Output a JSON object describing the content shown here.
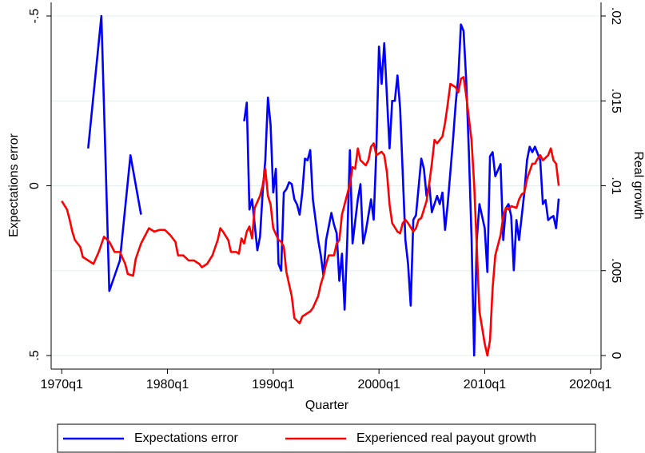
{
  "chart_data": {
    "type": "line",
    "x_label": "Quarter",
    "y_label": "Expectations error",
    "y2_label": "Real growth",
    "xlim": [
      1969,
      2021
    ],
    "xticks": [
      {
        "value": 1970,
        "label": "1970q1"
      },
      {
        "value": 1980,
        "label": "1980q1"
      },
      {
        "value": 1990,
        "label": "1990q1"
      },
      {
        "value": 2000,
        "label": "2000q1"
      },
      {
        "value": 2010,
        "label": "2010q1"
      },
      {
        "value": 2020,
        "label": "2020q1"
      }
    ],
    "ylim": [
      0.54,
      -0.54
    ],
    "yticks": [
      {
        "value": 0.5,
        "label": ".5"
      },
      0,
      {
        "value": -0.5,
        "label": "-.5"
      }
    ],
    "y2lim": [
      -0.0008,
      0.0208
    ],
    "y2ticks": [
      0,
      {
        "value": 0.005,
        "label": ".005"
      },
      {
        "value": 0.01,
        "label": ".01"
      },
      {
        "value": 0.015,
        "label": ".015"
      },
      {
        "value": 0.02,
        "label": ".02"
      }
    ],
    "grid": true,
    "legend": "bottom",
    "series": [
      {
        "name": "Expectations error",
        "color": "#0000ff",
        "axis": "y",
        "x": [
          1972.5,
          1973.75,
          1974.5,
          1975.5,
          1976.5,
          1977.5,
          1982,
          1987.25,
          1987.5,
          1987.75,
          1988,
          1988.5,
          1988.75,
          1989,
          1989.25,
          1989.5,
          1989.75,
          1990,
          1990.25,
          1990.5,
          1990.75,
          1991,
          1991.25,
          1991.5,
          1991.75,
          1992,
          1992.25,
          1992.5,
          1992.75,
          1993,
          1993.25,
          1993.5,
          1993.75,
          1994.25,
          1994.5,
          1994.75,
          1995,
          1995.5,
          1995.75,
          1996,
          1996.25,
          1996.5,
          1996.75,
          1997,
          1997.25,
          1997.5,
          1998,
          1998.25,
          1998.5,
          1998.75,
          1999.25,
          1999.5,
          1999.75,
          2000,
          2000.25,
          2000.5,
          2000.75,
          2001,
          2001.25,
          2001.5,
          2001.75,
          2002,
          2002.5,
          2002.75,
          2003,
          2003.25,
          2003.5,
          2004,
          2004.25,
          2004.5,
          2004.75,
          2005,
          2005.5,
          2005.75,
          2006,
          2006.25,
          2006.5,
          2007,
          2007.25,
          2007.5,
          2007.75,
          2008,
          2008.25,
          2008.5,
          2008.75,
          2009,
          2009.25,
          2009.5,
          2010,
          2010.25,
          2010.5,
          2010.75,
          2011,
          2011.5,
          2011.75,
          2012,
          2012.25,
          2012.5,
          2012.75,
          2013,
          2013.25,
          2013.75,
          2014,
          2014.25,
          2014.5,
          2014.75,
          2015.25,
          2015.5,
          2015.75,
          2016,
          2016.25,
          2016.5,
          2016.75,
          2017
        ],
        "values": [
          -0.11,
          -0.5,
          0.31,
          0.22,
          -0.09,
          0.085,
          null,
          -0.19,
          -0.245,
          0.07,
          0.04,
          0.19,
          0.15,
          0.02,
          -0.075,
          -0.26,
          -0.18,
          0.02,
          -0.05,
          0.23,
          0.25,
          0.02,
          0.01,
          -0.01,
          -0.005,
          0.04,
          0.055,
          0.085,
          0.02,
          -0.08,
          -0.075,
          -0.105,
          0.04,
          0.16,
          0.205,
          0.265,
          0.16,
          0.08,
          0.115,
          0.14,
          0.28,
          0.2,
          0.365,
          0.16,
          -0.105,
          0.17,
          0.04,
          -0.005,
          0.17,
          0.135,
          0.04,
          0.1,
          -0.105,
          -0.41,
          -0.3,
          -0.42,
          -0.265,
          -0.11,
          -0.25,
          -0.25,
          -0.325,
          -0.228,
          0.16,
          0.23,
          0.353,
          0.1,
          0.087,
          -0.08,
          -0.05,
          0.03,
          -0.005,
          0.078,
          0.03,
          0.054,
          0.02,
          0.13,
          0.054,
          -0.134,
          -0.24,
          -0.32,
          -0.475,
          -0.456,
          -0.31,
          -0.099,
          0.148,
          0.5,
          0.16,
          0.054,
          0.125,
          0.254,
          -0.087,
          -0.099,
          -0.028,
          -0.064,
          0.16,
          0.066,
          0.054,
          0.089,
          0.249,
          0.101,
          0.16,
          0.019,
          -0.075,
          -0.115,
          -0.099,
          -0.115,
          -0.075,
          0.054,
          0.042,
          0.101,
          0.094,
          0.089,
          0.125,
          0.038
        ]
      },
      {
        "name": "Experienced real payout growth",
        "color": "#ff0000",
        "axis": "y2",
        "x": [
          1970,
          1970.5,
          1970.75,
          1971,
          1971.25,
          1971.75,
          1972,
          1972.75,
          1973,
          1973.5,
          1974,
          1974.5,
          1975,
          1975.5,
          1976,
          1976.25,
          1976.75,
          1977,
          1977.5,
          1978,
          1978.25,
          1978.75,
          1979.25,
          1979.75,
          1980.25,
          1980.75,
          1981,
          1981.5,
          1982,
          1982.5,
          1983,
          1983.25,
          1983.75,
          1984.25,
          1984.75,
          1985,
          1985.25,
          1985.75,
          1986,
          1986.5,
          1986.75,
          1987,
          1987.25,
          1987.5,
          1987.75,
          1988,
          1988.25,
          1988.75,
          1989,
          1989.25,
          1989.5,
          1989.75,
          1990,
          1990.5,
          1990.75,
          1991,
          1991.25,
          1991.75,
          1992,
          1992.5,
          1992.75,
          1993,
          1993.5,
          1993.75,
          1994.25,
          1994.5,
          1994.75,
          1995,
          1995.25,
          1995.75,
          1996,
          1996.25,
          1996.5,
          1996.75,
          1997.25,
          1997.5,
          1997.75,
          1998,
          1998.25,
          1998.75,
          1999,
          1999.25,
          1999.5,
          1999.75,
          2000.25,
          2000.5,
          2000.75,
          2001,
          2001.25,
          2001.75,
          2002,
          2002.25,
          2002.5,
          2002.75,
          2003.25,
          2003.5,
          2003.75,
          2004,
          2004.5,
          2004.75,
          2005,
          2005.25,
          2005.5,
          2006,
          2006.25,
          2006.5,
          2006.75,
          2007.25,
          2007.5,
          2007.75,
          2008,
          2008.25,
          2008.75,
          2009,
          2009.25,
          2009.5,
          2010,
          2010.25,
          2010.5,
          2010.75,
          2011,
          2011.5,
          2011.75,
          2012,
          2012.25,
          2012.5,
          2013,
          2013.25,
          2013.5,
          2013.75,
          2014,
          2014.5,
          2014.75,
          2015,
          2015.25,
          2015.5,
          2016,
          2016.25,
          2016.5,
          2016.75,
          2017
        ],
        "values": [
          0.0091,
          0.0086,
          0.008,
          0.0073,
          0.0068,
          0.0064,
          0.0058,
          0.0055,
          0.0054,
          0.0061,
          0.007,
          0.0067,
          0.0061,
          0.0061,
          0.0054,
          0.0048,
          0.0047,
          0.0057,
          0.0066,
          0.0072,
          0.0075,
          0.0073,
          0.0074,
          0.0074,
          0.0071,
          0.0067,
          0.0059,
          0.0059,
          0.0056,
          0.0056,
          0.0054,
          0.0052,
          0.0054,
          0.0059,
          0.0068,
          0.0075,
          0.0073,
          0.0068,
          0.0061,
          0.0061,
          0.006,
          0.0069,
          0.0066,
          0.0073,
          0.0076,
          0.0069,
          0.0087,
          0.0094,
          0.01,
          0.011,
          0.0094,
          0.0089,
          0.0075,
          0.0068,
          0.0067,
          0.0064,
          0.0049,
          0.0035,
          0.0022,
          0.0019,
          0.0023,
          0.0024,
          0.0026,
          0.0028,
          0.0035,
          0.0042,
          0.0047,
          0.0054,
          0.0059,
          0.0059,
          0.0066,
          0.0068,
          0.0083,
          0.0089,
          0.0101,
          0.0111,
          0.011,
          0.0122,
          0.0115,
          0.0112,
          0.0115,
          0.0123,
          0.0125,
          0.0118,
          0.012,
          0.0118,
          0.0108,
          0.0089,
          0.0078,
          0.0073,
          0.0072,
          0.0078,
          0.008,
          0.0078,
          0.0073,
          0.0075,
          0.008,
          0.0081,
          0.0091,
          0.0101,
          0.0113,
          0.0127,
          0.0125,
          0.0129,
          0.0137,
          0.0148,
          0.016,
          0.0158,
          0.0155,
          0.0163,
          0.0164,
          0.0153,
          0.0127,
          0.0101,
          0.0064,
          0.0026,
          0.0007,
          0,
          0.0009,
          0.004,
          0.0059,
          0.0071,
          0.0082,
          0.0087,
          0.0086,
          0.0088,
          0.0087,
          0.0092,
          0.0095,
          0.0096,
          0.0104,
          0.0113,
          0.0113,
          0.0116,
          0.0118,
          0.0115,
          0.0118,
          0.0122,
          0.0115,
          0.0113,
          0.01
        ]
      }
    ]
  }
}
